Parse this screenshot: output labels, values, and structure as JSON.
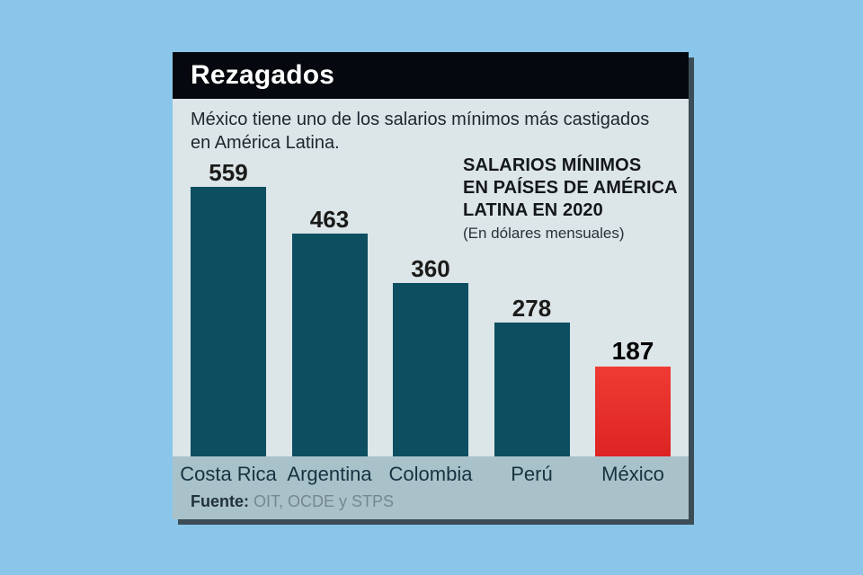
{
  "header": {
    "title": "Rezagados"
  },
  "subtitle": {
    "line1": "México tiene uno de los salarios mínimos más castigados",
    "line2": "en América Latina."
  },
  "chart_data": {
    "type": "bar",
    "title_lines": [
      "SALARIOS MÍNIMOS",
      "EN PAÍSES DE AMÉRICA",
      "LATINA EN 2020"
    ],
    "units": "(En dólares mensuales)",
    "categories": [
      "Costa Rica",
      "Argentina",
      "Colombia",
      "Perú",
      "México"
    ],
    "values": [
      559,
      463,
      360,
      278,
      187
    ],
    "highlight_category": "México",
    "bar_color": "#0d4e60",
    "highlight_color": "#e32b28",
    "ylim": [
      0,
      600
    ],
    "grid": false,
    "legend": false,
    "data_labels": true,
    "orientation": "vertical"
  },
  "footer": {
    "source_label": "Fuente:",
    "source_text": " OIT, OCDE y STPS"
  },
  "colors": {
    "page_background": "#8ac6e9",
    "card_background": "#dce5e8",
    "band_background": "#a9c2ca",
    "header_background": "#05080e",
    "header_text": "#ffffff",
    "bar_teal": "#0d4e60",
    "bar_red": "#e32b28",
    "shadow": "#3c4d57"
  }
}
